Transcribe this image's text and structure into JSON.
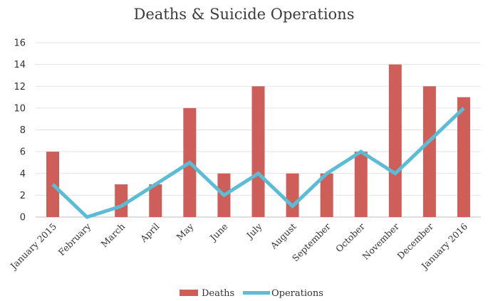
{
  "chart_data": {
    "type": "bar",
    "title": "Deaths & Suicide Operations",
    "categories": [
      "January 2015",
      "February",
      "March",
      "April",
      "May",
      "June",
      "July",
      "August",
      "September",
      "October",
      "November",
      "December",
      "January 2016"
    ],
    "series": [
      {
        "name": "Deaths",
        "type": "bar",
        "color": "#cd5f58",
        "values": [
          6,
          0,
          3,
          3,
          10,
          4,
          12,
          4,
          4,
          6,
          14,
          12,
          11
        ]
      },
      {
        "name": "Operations",
        "type": "line",
        "color": "#5bbcd6",
        "values": [
          3,
          0,
          1,
          3,
          5,
          2,
          4,
          1,
          4,
          6,
          4,
          7,
          10
        ]
      }
    ],
    "ylim": [
      0,
      16
    ],
    "yticks": [
      0,
      2,
      4,
      6,
      8,
      10,
      12,
      14,
      16
    ],
    "grid": true,
    "legend": "bottom"
  }
}
